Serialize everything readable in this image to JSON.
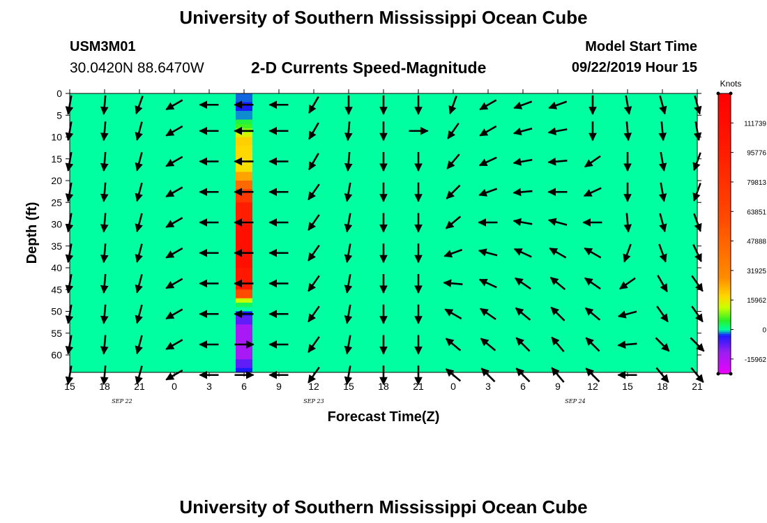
{
  "header": {
    "title": "University of Southern Mississippi Ocean Cube",
    "station_id": "USM3M01",
    "station_coords": "30.0420N 88.6470W",
    "plot_title": "2-D Currents Speed-Magnitude",
    "start_label": "Model Start Time",
    "start_value": "09/22/2019 Hour 15"
  },
  "footer": {
    "title": "University of Southern Mississippi Ocean Cube"
  },
  "chart_data": {
    "type": "heatmap",
    "title": "2-D Currents Speed-Magnitude",
    "xlabel": "Forecast Time(Z)",
    "ylabel": "Depth (ft)",
    "x_tick_labels": [
      "15",
      "18",
      "21",
      "0",
      "3",
      "6",
      "9",
      "12",
      "15",
      "18",
      "21",
      "0",
      "3",
      "6",
      "9",
      "12",
      "15",
      "18",
      "21"
    ],
    "date_labels": [
      {
        "label": "SEP 22",
        "at_tick": 1.5
      },
      {
        "label": "SEP 23",
        "at_tick": 7
      },
      {
        "label": "SEP 24",
        "at_tick": 14.5
      }
    ],
    "y_ticks": [
      0,
      5,
      10,
      15,
      20,
      25,
      30,
      35,
      40,
      45,
      50,
      55,
      60
    ],
    "ylim": [
      0,
      64
    ],
    "y_inverted": true,
    "colorbar": {
      "title": "Knots",
      "tick_labels": [
        "111739",
        "95776",
        "79813",
        "63851",
        "47888",
        "31925",
        "15962",
        "0",
        "-15962"
      ],
      "tick_values": [
        111739,
        95776,
        79813,
        63851,
        47888,
        31925,
        15962,
        0,
        -15962
      ],
      "range": [
        -23943,
        127701
      ],
      "stops": [
        {
          "v": -23943,
          "c": "#ee00ff"
        },
        {
          "v": -12000,
          "c": "#9a1ff0"
        },
        {
          "v": -3000,
          "c": "#1a1aff"
        },
        {
          "v": 0,
          "c": "#00ffa0"
        },
        {
          "v": 5000,
          "c": "#28f028"
        },
        {
          "v": 12000,
          "c": "#c8ff00"
        },
        {
          "v": 18000,
          "c": "#ffd800"
        },
        {
          "v": 28000,
          "c": "#ff8c00"
        },
        {
          "v": 60000,
          "c": "#ff4a00"
        },
        {
          "v": 100000,
          "c": "#ff1800"
        },
        {
          "v": 127701,
          "c": "#ff0000"
        }
      ]
    },
    "background_value": 0,
    "anomaly_column": {
      "x_tick": 5,
      "cells": [
        {
          "d0": 0,
          "d1": 2,
          "value": -2000
        },
        {
          "d0": 2,
          "d1": 4,
          "value": -3000
        },
        {
          "d0": 4,
          "d1": 6,
          "value": -1500
        },
        {
          "d0": 6,
          "d1": 7,
          "value": 4000
        },
        {
          "d0": 7,
          "d1": 8,
          "value": 6000
        },
        {
          "d0": 8,
          "d1": 9,
          "value": 9000
        },
        {
          "d0": 9,
          "d1": 10,
          "value": 14000
        },
        {
          "d0": 10,
          "d1": 12,
          "value": 19000
        },
        {
          "d0": 12,
          "d1": 15,
          "value": 18000
        },
        {
          "d0": 15,
          "d1": 18,
          "value": 17000
        },
        {
          "d0": 18,
          "d1": 20,
          "value": 25000
        },
        {
          "d0": 20,
          "d1": 22,
          "value": 45000
        },
        {
          "d0": 22,
          "d1": 25,
          "value": 75000
        },
        {
          "d0": 25,
          "d1": 30,
          "value": 95000
        },
        {
          "d0": 30,
          "d1": 40,
          "value": 110000
        },
        {
          "d0": 40,
          "d1": 45,
          "value": 100000
        },
        {
          "d0": 45,
          "d1": 47,
          "value": 60000
        },
        {
          "d0": 47,
          "d1": 48,
          "value": 12000
        },
        {
          "d0": 48,
          "d1": 49,
          "value": 3000
        },
        {
          "d0": 49,
          "d1": 50,
          "value": 0
        },
        {
          "d0": 50,
          "d1": 51,
          "value": -3000
        },
        {
          "d0": 51,
          "d1": 53,
          "value": -8000
        },
        {
          "d0": 53,
          "d1": 61,
          "value": -14000
        },
        {
          "d0": 61,
          "d1": 63,
          "value": -8000
        },
        {
          "d0": 63,
          "d1": 64,
          "value": -3000
        }
      ]
    },
    "vector_depths": [
      1,
      7,
      14,
      21,
      28,
      35,
      42,
      49,
      56,
      63
    ],
    "vector_times": [
      0,
      1,
      2,
      3,
      4,
      5,
      6,
      7,
      8,
      9,
      10,
      11,
      12,
      13,
      14,
      15,
      16,
      17,
      18
    ],
    "vector_directions_deg": [
      [
        190,
        185,
        200,
        240,
        270,
        270,
        270,
        210,
        180,
        180,
        180,
        200,
        240,
        250,
        250,
        180,
        170,
        165,
        165
      ],
      [
        190,
        185,
        195,
        240,
        270,
        270,
        270,
        210,
        185,
        180,
        90,
        215,
        240,
        255,
        260,
        180,
        175,
        175,
        170
      ],
      [
        190,
        185,
        195,
        240,
        270,
        270,
        270,
        210,
        185,
        180,
        180,
        220,
        245,
        260,
        265,
        235,
        180,
        170,
        200
      ],
      [
        190,
        185,
        195,
        240,
        270,
        270,
        270,
        215,
        190,
        180,
        180,
        225,
        250,
        265,
        270,
        245,
        180,
        170,
        200
      ],
      [
        190,
        185,
        195,
        240,
        270,
        270,
        270,
        215,
        190,
        180,
        180,
        230,
        270,
        280,
        285,
        270,
        175,
        165,
        160
      ],
      [
        190,
        185,
        195,
        240,
        270,
        270,
        270,
        215,
        190,
        180,
        180,
        250,
        285,
        295,
        300,
        300,
        200,
        160,
        155
      ],
      [
        190,
        185,
        195,
        240,
        270,
        270,
        270,
        215,
        190,
        180,
        180,
        275,
        295,
        305,
        310,
        305,
        235,
        150,
        145
      ],
      [
        190,
        185,
        195,
        240,
        270,
        270,
        270,
        215,
        190,
        180,
        180,
        300,
        305,
        310,
        315,
        310,
        255,
        145,
        145
      ],
      [
        190,
        185,
        195,
        240,
        270,
        90,
        270,
        215,
        190,
        180,
        180,
        310,
        310,
        315,
        320,
        315,
        265,
        135,
        135
      ],
      [
        190,
        185,
        195,
        240,
        270,
        90,
        270,
        215,
        190,
        180,
        180,
        310,
        315,
        315,
        320,
        315,
        270,
        140,
        140
      ]
    ]
  }
}
